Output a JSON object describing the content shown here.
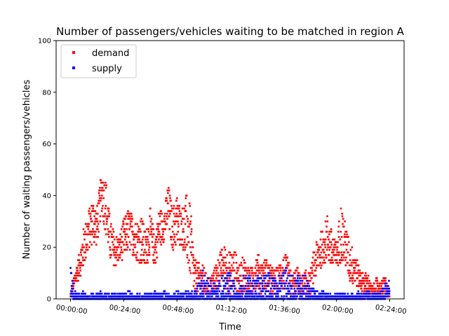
{
  "chart_data": {
    "type": "scatter",
    "title": "Number of passengers/vehicles waiting to be matched in region A",
    "xlabel": "Time",
    "ylabel": "Number of waiting passengers/vehicles",
    "x_tick_labels": [
      "00:00:00",
      "00:24:00",
      "00:48:00",
      "01:12:00",
      "01:36:00",
      "02:00:00",
      "02:24:00"
    ],
    "x_tick_minutes": [
      0,
      24,
      48,
      72,
      96,
      120,
      144
    ],
    "xlim_minutes": [
      -6.5,
      150.5
    ],
    "y_ticks": [
      0,
      20,
      40,
      60,
      80,
      100
    ],
    "ylim": [
      0,
      100
    ],
    "legend_position": "upper-left",
    "series": [
      {
        "name": "demand",
        "color": "#ff0000",
        "envelope_upper": {
          "x_minutes": [
            0,
            2,
            4,
            6,
            8,
            10,
            12,
            14,
            16,
            18,
            20,
            22,
            24,
            26,
            28,
            30,
            32,
            34,
            36,
            38,
            40,
            42,
            44,
            46,
            48,
            50,
            52,
            54,
            56,
            58,
            60,
            62,
            64,
            66,
            68,
            70,
            72,
            74,
            76,
            78,
            80,
            82,
            84,
            86,
            88,
            90,
            92,
            94,
            96,
            98,
            100,
            102,
            104,
            106,
            108,
            110,
            112,
            114,
            116,
            118,
            120,
            122,
            124,
            126,
            128,
            130,
            132,
            134,
            136,
            138,
            140,
            142,
            144
          ],
          "values": [
            1,
            11,
            18,
            28,
            34,
            39,
            36,
            49,
            47,
            30,
            25,
            24,
            31,
            35,
            33,
            30,
            33,
            26,
            35,
            24,
            36,
            33,
            45,
            35,
            41,
            34,
            41,
            37,
            15,
            14,
            13,
            8,
            10,
            15,
            19,
            21,
            18,
            20,
            13,
            17,
            13,
            12,
            19,
            14,
            16,
            13,
            12,
            13,
            18,
            16,
            9,
            13,
            8,
            11,
            10,
            20,
            25,
            27,
            33,
            26,
            22,
            37,
            30,
            22,
            20,
            13,
            10,
            10,
            5,
            8,
            6,
            9,
            2
          ]
        },
        "envelope_lower": {
          "x_minutes": [
            0,
            2,
            4,
            6,
            8,
            10,
            12,
            14,
            16,
            18,
            20,
            22,
            24,
            26,
            28,
            30,
            32,
            34,
            36,
            38,
            40,
            42,
            44,
            46,
            48,
            50,
            52,
            54,
            56,
            58,
            60,
            62,
            64,
            66,
            68,
            70,
            72,
            74,
            76,
            78,
            80,
            82,
            84,
            86,
            88,
            90,
            92,
            94,
            96,
            98,
            100,
            102,
            104,
            106,
            108,
            110,
            112,
            114,
            116,
            118,
            120,
            122,
            124,
            126,
            128,
            130,
            132,
            134,
            136,
            138,
            140,
            142,
            144
          ],
          "values": [
            0,
            5,
            8,
            12,
            18,
            22,
            20,
            34,
            24,
            14,
            12,
            14,
            16,
            18,
            17,
            15,
            13,
            11,
            18,
            12,
            20,
            22,
            27,
            19,
            19,
            21,
            15,
            8,
            1,
            2,
            1,
            1,
            1,
            3,
            6,
            3,
            1,
            4,
            1,
            3,
            1,
            1,
            5,
            2,
            4,
            1,
            1,
            1,
            3,
            2,
            1,
            2,
            1,
            2,
            1,
            6,
            11,
            13,
            15,
            10,
            12,
            14,
            12,
            6,
            5,
            4,
            2,
            2,
            1,
            2,
            1,
            2,
            0
          ]
        }
      },
      {
        "name": "supply",
        "color": "#0000ff",
        "envelope_upper": {
          "x_minutes": [
            0,
            2,
            4,
            6,
            8,
            10,
            12,
            14,
            16,
            18,
            20,
            22,
            24,
            26,
            28,
            30,
            32,
            34,
            36,
            38,
            40,
            42,
            44,
            46,
            48,
            50,
            52,
            54,
            56,
            58,
            60,
            62,
            64,
            66,
            68,
            70,
            72,
            74,
            76,
            78,
            80,
            82,
            84,
            86,
            88,
            90,
            92,
            94,
            96,
            98,
            100,
            102,
            104,
            106,
            108,
            110,
            112,
            114,
            116,
            118,
            120,
            122,
            124,
            126,
            128,
            130,
            132,
            134,
            136,
            138,
            140,
            142,
            144
          ],
          "values": [
            13,
            3,
            2,
            3,
            2,
            2,
            2,
            3,
            2,
            2,
            2,
            2,
            2,
            3,
            2,
            2,
            2,
            2,
            2,
            3,
            2,
            3,
            2,
            2,
            3,
            2,
            3,
            3,
            3,
            8,
            12,
            9,
            8,
            5,
            9,
            11,
            10,
            6,
            8,
            9,
            10,
            8,
            11,
            9,
            10,
            11,
            8,
            10,
            13,
            11,
            10,
            10,
            12,
            9,
            6,
            4,
            3,
            3,
            2,
            2,
            2,
            3,
            2,
            2,
            2,
            3,
            2,
            3,
            2,
            2,
            3,
            6,
            9
          ]
        },
        "envelope_lower": {
          "x_minutes": [
            0,
            2,
            4,
            6,
            8,
            10,
            12,
            14,
            16,
            18,
            20,
            22,
            24,
            26,
            28,
            30,
            32,
            34,
            36,
            38,
            40,
            42,
            44,
            46,
            48,
            50,
            52,
            54,
            56,
            58,
            60,
            62,
            64,
            66,
            68,
            70,
            72,
            74,
            76,
            78,
            80,
            82,
            84,
            86,
            88,
            90,
            92,
            94,
            96,
            98,
            100,
            102,
            104,
            106,
            108,
            110,
            112,
            114,
            116,
            118,
            120,
            122,
            124,
            126,
            128,
            130,
            132,
            134,
            136,
            138,
            140,
            142,
            144
          ],
          "values": [
            0,
            0,
            0,
            0,
            0,
            0,
            0,
            0,
            0,
            0,
            0,
            0,
            0,
            0,
            0,
            0,
            0,
            0,
            0,
            0,
            0,
            0,
            0,
            0,
            0,
            0,
            0,
            0,
            0,
            0,
            0,
            0,
            0,
            0,
            0,
            0,
            0,
            0,
            0,
            0,
            0,
            0,
            0,
            0,
            0,
            0,
            0,
            0,
            0,
            0,
            0,
            0,
            0,
            0,
            0,
            0,
            0,
            0,
            0,
            0,
            0,
            0,
            0,
            0,
            0,
            0,
            0,
            0,
            0,
            0,
            0,
            0,
            2
          ]
        }
      }
    ]
  }
}
